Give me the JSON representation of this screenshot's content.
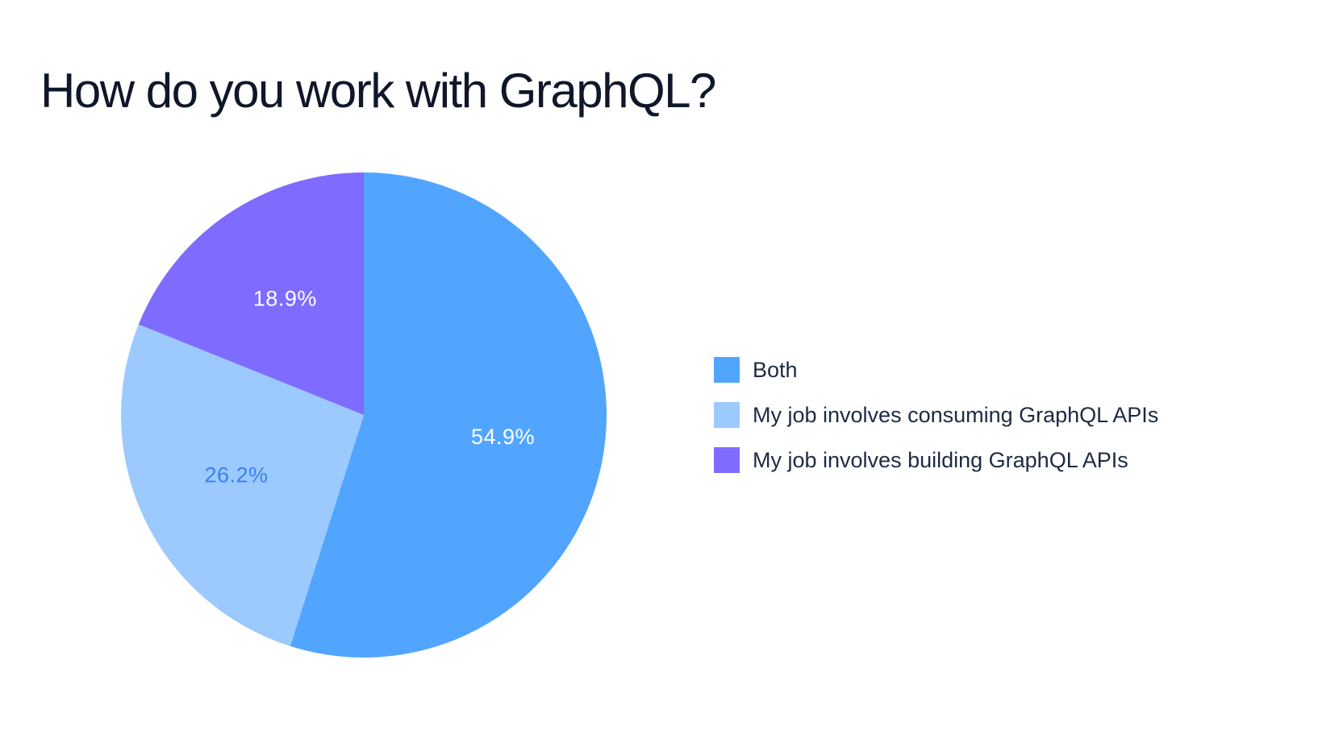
{
  "chart_data": {
    "type": "pie",
    "title": "How do you work with GraphQL?",
    "legend_position": "right",
    "slices": [
      {
        "label": "Both",
        "value": 54.9,
        "display": "54.9%",
        "color": "#52a5ff",
        "label_color": "#ffffff"
      },
      {
        "label": "My job involves consuming GraphQL APIs",
        "value": 26.2,
        "display": "26.2%",
        "color": "#9ccaff",
        "label_color": "#3b7ff0"
      },
      {
        "label": "My job involves building GraphQL APIs",
        "value": 18.9,
        "display": "18.9%",
        "color": "#7e6bff",
        "label_color": "#ffffff"
      }
    ]
  }
}
